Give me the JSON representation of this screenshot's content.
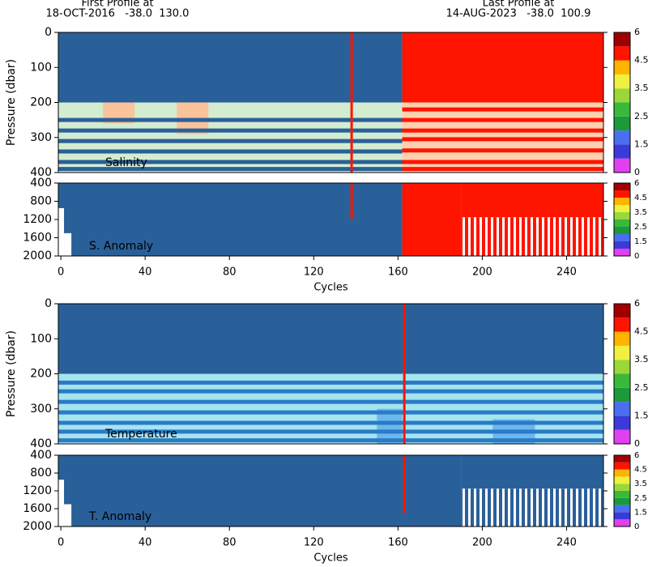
{
  "header": {
    "first_label": "First Profile at",
    "first": "18-OCT-2016   -38.0  130.0",
    "last_label": "Last Profile at",
    "last": "14-AUG-2023   -38.0  100.9"
  },
  "chart_data": [
    {
      "type": "heatmap",
      "label": "Salinity",
      "ylabel": "Pressure (dbar)",
      "xlim": [
        -1.2,
        257.5
      ],
      "ylim": [
        0,
        400
      ],
      "yticks": [
        0,
        100,
        200,
        300,
        400
      ],
      "regions": [
        {
          "xlim": [
            -1.2,
            162
          ],
          "ylim": [
            0,
            200
          ],
          "color": "#2a6099"
        },
        {
          "xlim": [
            162,
            257.5
          ],
          "ylim": [
            0,
            200
          ],
          "color": "#ff1400"
        },
        {
          "xlim": [
            -1.2,
            162
          ],
          "ylim": [
            200,
            400
          ],
          "color": "#d4ecd0"
        },
        {
          "xlim": [
            162,
            257.5
          ],
          "ylim": [
            200,
            400
          ],
          "color": "#fdd0b0"
        },
        {
          "xlim": [
            20,
            35
          ],
          "ylim": [
            200,
            260
          ],
          "color": "#fbc39a"
        },
        {
          "xlim": [
            55,
            70
          ],
          "ylim": [
            200,
            290
          ],
          "color": "#fbc39a"
        }
      ],
      "stripes": [
        {
          "xlim": [
            -1.2,
            162
          ],
          "pressures": [
            250,
            280,
            310,
            340,
            370,
            390
          ],
          "color": "#2a6099"
        },
        {
          "xlim": [
            162,
            257.5
          ],
          "pressures": [
            220,
            250,
            280,
            305,
            337,
            370,
            390
          ],
          "color": "#ff1400"
        }
      ],
      "vline": {
        "x": 138,
        "ylim": [
          0,
          400
        ],
        "color": "#ff1400"
      },
      "colorbar": {
        "colors": [
          "#e040f0",
          "#3a3ad8",
          "#4a6ef0",
          "#1a9a3a",
          "#3ab83a",
          "#9ad83a",
          "#f0f040",
          "#ffb400",
          "#ff1400",
          "#a00000"
        ],
        "levels": [
          0,
          1,
          1.5,
          2,
          2.5,
          3,
          3.5,
          4,
          4.5,
          5,
          6
        ],
        "ticks": [
          0,
          1.5,
          2.5,
          3.5,
          4.5,
          6
        ]
      }
    },
    {
      "type": "heatmap",
      "label": "S. Anomaly",
      "xlabel": "Cycles",
      "xlim": [
        -1.2,
        257.5
      ],
      "ylim": [
        400,
        2000
      ],
      "yticks": [
        400,
        800,
        1200,
        1600,
        2000
      ],
      "xticks": [
        0,
        40,
        80,
        120,
        160,
        200,
        240
      ],
      "regions": [
        {
          "xlim": [
            -1.2,
            162
          ],
          "ylim": [
            400,
            2000
          ],
          "color": "#2a6099"
        },
        {
          "xlim": [
            162,
            190
          ],
          "ylim": [
            400,
            2000
          ],
          "color": "#ff1400"
        },
        {
          "xlim": [
            190,
            257.5
          ],
          "ylim": [
            400,
            1150
          ],
          "color": "#ff1400"
        },
        {
          "xlim": [
            190,
            257.5
          ],
          "ylim": [
            1150,
            2000
          ],
          "color": "#ff1400",
          "hatched": true
        },
        {
          "xlim": [
            -1.2,
            1.5
          ],
          "ylim": [
            950,
            2000
          ],
          "color": "#ffffff"
        },
        {
          "xlim": [
            1.5,
            5
          ],
          "ylim": [
            1500,
            2000
          ],
          "color": "#ffffff"
        }
      ],
      "vline": {
        "x": 138,
        "ylim": [
          400,
          1200
        ],
        "color": "#ff1400"
      },
      "colorbar": {
        "colors": [
          "#e040f0",
          "#3a3ad8",
          "#4a6ef0",
          "#1a9a3a",
          "#3ab83a",
          "#9ad83a",
          "#f0f040",
          "#ffb400",
          "#ff1400",
          "#a00000"
        ],
        "levels": [
          0,
          1,
          1.5,
          2,
          2.5,
          3,
          3.5,
          4,
          4.5,
          5,
          6
        ],
        "ticks": [
          0,
          1.5,
          2.5,
          3.5,
          4.5,
          6
        ]
      }
    },
    {
      "type": "heatmap",
      "label": "Temperature",
      "ylabel": "Pressure (dbar)",
      "xlim": [
        -1.2,
        257.5
      ],
      "ylim": [
        0,
        400
      ],
      "yticks": [
        0,
        100,
        200,
        300,
        400
      ],
      "regions": [
        {
          "xlim": [
            -1.2,
            257.5
          ],
          "ylim": [
            0,
            200
          ],
          "color": "#2a6099"
        },
        {
          "xlim": [
            -1.2,
            257.5
          ],
          "ylim": [
            200,
            400
          ],
          "color": "#a6e4ee"
        },
        {
          "xlim": [
            150,
            162
          ],
          "ylim": [
            300,
            400
          ],
          "color": "#6cb8ec"
        },
        {
          "xlim": [
            205,
            225
          ],
          "ylim": [
            330,
            400
          ],
          "color": "#6cb8ec"
        }
      ],
      "stripes": [
        {
          "xlim": [
            -1.2,
            257.5
          ],
          "pressures": [
            225,
            250,
            280,
            310,
            340,
            365,
            390
          ],
          "color": "#2a7ac8"
        }
      ],
      "vline": {
        "x": 163,
        "ylim": [
          0,
          400
        ],
        "color": "#ff1400"
      },
      "colorbar": {
        "colors": [
          "#e040f0",
          "#3a3ad8",
          "#4a6ef0",
          "#1a9a3a",
          "#3ab83a",
          "#9ad83a",
          "#f0f040",
          "#ffb400",
          "#ff1400",
          "#a00000"
        ],
        "levels": [
          0,
          1,
          1.5,
          2,
          2.5,
          3,
          3.5,
          4,
          4.5,
          5,
          6
        ],
        "ticks": [
          0,
          1.5,
          2.5,
          3.5,
          4.5,
          6
        ]
      }
    },
    {
      "type": "heatmap",
      "label": "T. Anomaly",
      "xlabel": "Cycles",
      "xlim": [
        -1.2,
        257.5
      ],
      "ylim": [
        400,
        2000
      ],
      "yticks": [
        400,
        800,
        1200,
        1600,
        2000
      ],
      "xticks": [
        0,
        40,
        80,
        120,
        160,
        200,
        240
      ],
      "regions": [
        {
          "xlim": [
            -1.2,
            190
          ],
          "ylim": [
            400,
            2000
          ],
          "color": "#2a6099"
        },
        {
          "xlim": [
            190,
            257.5
          ],
          "ylim": [
            400,
            1150
          ],
          "color": "#2a6099"
        },
        {
          "xlim": [
            190,
            257.5
          ],
          "ylim": [
            1150,
            2000
          ],
          "color": "#2a6099",
          "hatched": true
        },
        {
          "xlim": [
            -1.2,
            1.5
          ],
          "ylim": [
            950,
            2000
          ],
          "color": "#ffffff"
        },
        {
          "xlim": [
            1.5,
            5
          ],
          "ylim": [
            1500,
            2000
          ],
          "color": "#ffffff"
        }
      ],
      "vline": {
        "x": 163,
        "ylim": [
          400,
          1700
        ],
        "color": "#ff1400"
      },
      "colorbar": {
        "colors": [
          "#e040f0",
          "#3a3ad8",
          "#4a6ef0",
          "#1a9a3a",
          "#3ab83a",
          "#9ad83a",
          "#f0f040",
          "#ffb400",
          "#ff1400",
          "#a00000"
        ],
        "levels": [
          0,
          1,
          1.5,
          2,
          2.5,
          3,
          3.5,
          4,
          4.5,
          5,
          6
        ],
        "ticks": [
          0,
          1.5,
          2.5,
          3.5,
          4.5,
          6
        ]
      }
    }
  ]
}
